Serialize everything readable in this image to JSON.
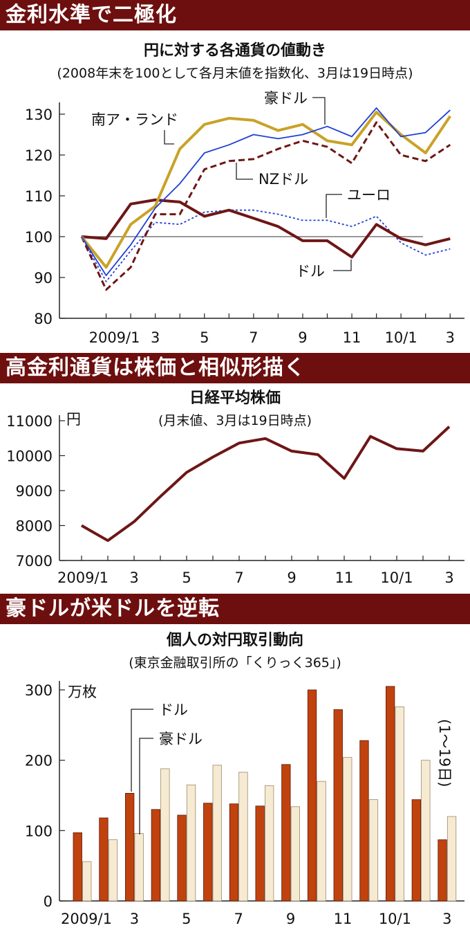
{
  "sections": [
    {
      "banner": "金利水準で二極化"
    },
    {
      "banner": "高金利通貨は株価と相似形描く"
    },
    {
      "banner": "豪ドルが米ドルを逆転"
    }
  ],
  "chart_data": [
    {
      "type": "line",
      "title": "円に対する各通貨の値動き",
      "subtitle": "(2008年末を100として各月末値を指数化、3月は19日時点)",
      "x": [
        "2008/12",
        "2009/1",
        "2009/2",
        "2009/3",
        "2009/4",
        "2009/5",
        "2009/6",
        "2009/7",
        "2009/8",
        "2009/9",
        "2009/10",
        "2009/11",
        "2009/12",
        "2010/1",
        "2010/2",
        "2010/3"
      ],
      "x_tick_labels": [
        "2009/1",
        "3",
        "5",
        "7",
        "9",
        "11",
        "10/1",
        "3"
      ],
      "ylim": [
        80,
        130
      ],
      "y_ticks": [
        80,
        90,
        100,
        110,
        120,
        130
      ],
      "reference_line": 100,
      "grid": false,
      "series": [
        {
          "name": "豪ドル",
          "color": "#1f3fd6",
          "style": "solid",
          "values": [
            100,
            90.5,
            98,
            107,
            113,
            120.5,
            122.5,
            125,
            124,
            125,
            127,
            124.5,
            131.5,
            124.5,
            125.5,
            131
          ]
        },
        {
          "name": "南ア・ランド",
          "color": "#c9a227",
          "style": "solid",
          "values": [
            100,
            92.5,
            103,
            107.5,
            121.5,
            127.5,
            129,
            128.5,
            126,
            127.5,
            123.5,
            122.5,
            130.5,
            125,
            120.5,
            129.5
          ]
        },
        {
          "name": "NZドル",
          "color": "#6e1616",
          "style": "dashed",
          "values": [
            100,
            87,
            92.5,
            105.5,
            105.5,
            116.5,
            118.5,
            119,
            121.5,
            123.5,
            122,
            118,
            128,
            120,
            118.5,
            122.5
          ]
        },
        {
          "name": "ユーロ",
          "color": "#1f3fd6",
          "style": "dotted",
          "values": [
            100,
            89,
            96.5,
            103.5,
            103,
            106,
            106.5,
            106.5,
            105.5,
            104,
            104,
            102.5,
            105,
            98.5,
            95.5,
            97
          ]
        },
        {
          "name": "ドル",
          "color": "#6e1616",
          "style": "thick",
          "values": [
            100,
            99.5,
            108,
            109,
            108.5,
            105,
            106.5,
            104.5,
            102.5,
            99,
            99,
            95,
            103,
            99.5,
            98,
            99.5
          ]
        }
      ]
    },
    {
      "type": "line",
      "title": "日経平均株価",
      "subtitle": "(月末値、3月は19日時点)",
      "unit": "円",
      "x": [
        "2009/1",
        "2009/2",
        "2009/3",
        "2009/4",
        "2009/5",
        "2009/6",
        "2009/7",
        "2009/8",
        "2009/9",
        "2009/10",
        "2009/11",
        "2009/12",
        "2010/1",
        "2010/2",
        "2010/3"
      ],
      "x_tick_labels": [
        "2009/1",
        "3",
        "5",
        "7",
        "9",
        "11",
        "10/1",
        "3"
      ],
      "ylim": [
        7000,
        11000
      ],
      "y_ticks": [
        7000,
        8000,
        9000,
        10000,
        11000
      ],
      "grid": false,
      "series": [
        {
          "name": "",
          "color": "#6e1616",
          "values": [
            8000,
            7570,
            8110,
            8830,
            9520,
            9960,
            10360,
            10490,
            10130,
            10030,
            9350,
            10550,
            10200,
            10130,
            10830
          ]
        }
      ]
    },
    {
      "type": "bar",
      "title": "個人の対円取引動向",
      "subtitle": "(東京金融取引所の「くりっく365」)",
      "unit": "万枚",
      "categories": [
        "2009/1",
        "2009/2",
        "2009/3",
        "2009/4",
        "2009/5",
        "2009/6",
        "2009/7",
        "2009/8",
        "2009/9",
        "2009/10",
        "2009/11",
        "2009/12",
        "2010/1",
        "2010/2",
        "2010/3"
      ],
      "x_tick_labels": [
        "2009/1",
        "3",
        "5",
        "7",
        "9",
        "11",
        "10/1",
        "3"
      ],
      "ylim": [
        0,
        300
      ],
      "y_ticks": [
        0,
        100,
        200,
        300
      ],
      "note": "(1〜19日)",
      "grid": false,
      "series": [
        {
          "name": "ドル",
          "color": "#c0420e",
          "values": [
            97,
            118,
            153,
            130,
            122,
            139,
            138,
            135,
            194,
            300,
            272,
            228,
            305,
            144,
            87
          ]
        },
        {
          "name": "豪ドル",
          "color": "#f6ead2",
          "values": [
            56,
            87,
            96,
            188,
            165,
            193,
            183,
            164,
            134,
            170,
            204,
            144,
            276,
            200,
            120
          ]
        }
      ]
    }
  ]
}
